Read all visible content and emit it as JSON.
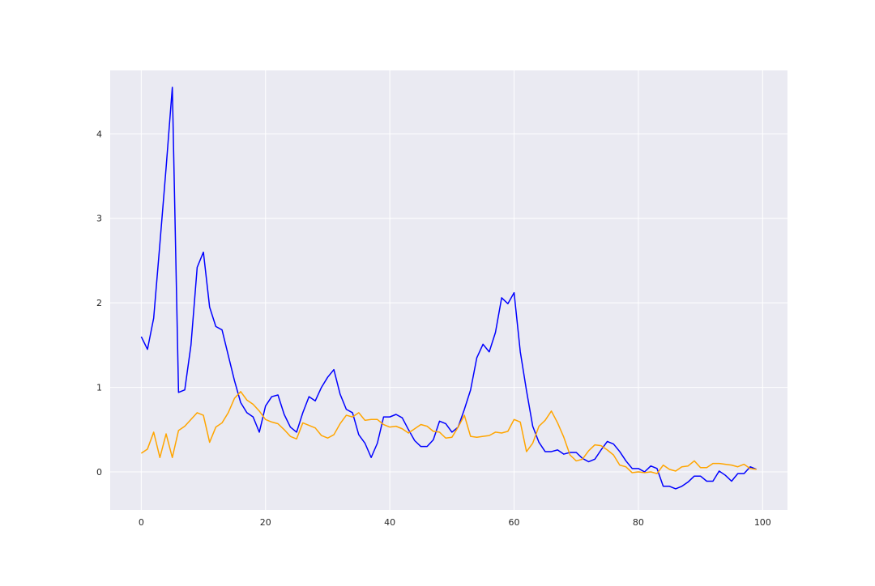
{
  "chart_data": {
    "type": "line",
    "title": "",
    "xlabel": "",
    "ylabel": "",
    "xlim": [
      -5,
      104
    ],
    "ylim": [
      -0.45,
      4.75
    ],
    "x_ticks": [
      0,
      20,
      40,
      60,
      80,
      100
    ],
    "y_ticks": [
      0,
      1,
      2,
      3,
      4
    ],
    "x_tick_labels": [
      "0",
      "20",
      "40",
      "60",
      "80",
      "100"
    ],
    "y_tick_labels": [
      "0",
      "1",
      "2",
      "3",
      "4"
    ],
    "grid": true,
    "legend": "none",
    "background": "#eaeaf2",
    "x": [
      0,
      1,
      2,
      3,
      4,
      5,
      6,
      7,
      8,
      9,
      10,
      11,
      12,
      13,
      14,
      15,
      16,
      17,
      18,
      19,
      20,
      21,
      22,
      23,
      24,
      25,
      26,
      27,
      28,
      29,
      30,
      31,
      32,
      33,
      34,
      35,
      36,
      37,
      38,
      39,
      40,
      41,
      42,
      43,
      44,
      45,
      46,
      47,
      48,
      49,
      50,
      51,
      52,
      53,
      54,
      55,
      56,
      57,
      58,
      59,
      60,
      61,
      62,
      63,
      64,
      65,
      66,
      67,
      68,
      69,
      70,
      71,
      72,
      73,
      74,
      75,
      76,
      77,
      78,
      79,
      80,
      81,
      82,
      83,
      84,
      85,
      86,
      87,
      88,
      89,
      90,
      91,
      92,
      93,
      94,
      95,
      96,
      97,
      98,
      99
    ],
    "series": [
      {
        "color": "#0000ff",
        "values": [
          1.6,
          1.45,
          1.82,
          2.7,
          3.6,
          4.55,
          0.94,
          0.97,
          1.5,
          2.42,
          2.6,
          1.95,
          1.72,
          1.68,
          1.38,
          1.08,
          0.82,
          0.7,
          0.65,
          0.47,
          0.78,
          0.89,
          0.91,
          0.68,
          0.53,
          0.47,
          0.7,
          0.89,
          0.84,
          1.0,
          1.12,
          1.21,
          0.92,
          0.74,
          0.7,
          0.44,
          0.34,
          0.17,
          0.34,
          0.65,
          0.65,
          0.68,
          0.64,
          0.5,
          0.37,
          0.3,
          0.3,
          0.38,
          0.6,
          0.57,
          0.47,
          0.53,
          0.74,
          0.97,
          1.35,
          1.51,
          1.42,
          1.65,
          2.06,
          1.99,
          2.12,
          1.42,
          0.96,
          0.54,
          0.35,
          0.24,
          0.24,
          0.26,
          0.21,
          0.23,
          0.23,
          0.16,
          0.12,
          0.15,
          0.26,
          0.36,
          0.33,
          0.24,
          0.13,
          0.04,
          0.04,
          0.0,
          0.07,
          0.04,
          -0.17,
          -0.17,
          -0.2,
          -0.17,
          -0.12,
          -0.05,
          -0.05,
          -0.11,
          -0.11,
          0.01,
          -0.04,
          -0.11,
          -0.02,
          -0.02,
          0.06,
          0.03
        ]
      },
      {
        "color": "#ffa500",
        "values": [
          0.22,
          0.27,
          0.47,
          0.17,
          0.45,
          0.17,
          0.49,
          0.54,
          0.62,
          0.7,
          0.67,
          0.35,
          0.53,
          0.58,
          0.7,
          0.87,
          0.95,
          0.85,
          0.8,
          0.72,
          0.62,
          0.59,
          0.57,
          0.5,
          0.42,
          0.39,
          0.58,
          0.55,
          0.52,
          0.43,
          0.4,
          0.44,
          0.57,
          0.67,
          0.65,
          0.7,
          0.61,
          0.62,
          0.62,
          0.56,
          0.53,
          0.54,
          0.51,
          0.46,
          0.51,
          0.56,
          0.54,
          0.48,
          0.47,
          0.4,
          0.41,
          0.53,
          0.67,
          0.42,
          0.41,
          0.42,
          0.43,
          0.47,
          0.46,
          0.48,
          0.62,
          0.59,
          0.24,
          0.34,
          0.54,
          0.61,
          0.72,
          0.58,
          0.41,
          0.2,
          0.13,
          0.15,
          0.25,
          0.32,
          0.31,
          0.26,
          0.2,
          0.08,
          0.06,
          -0.01,
          0.0,
          -0.01,
          0.0,
          -0.02,
          0.08,
          0.03,
          0.01,
          0.06,
          0.07,
          0.13,
          0.05,
          0.05,
          0.1,
          0.1,
          0.09,
          0.08,
          0.06,
          0.09,
          0.04,
          0.03
        ]
      }
    ]
  }
}
